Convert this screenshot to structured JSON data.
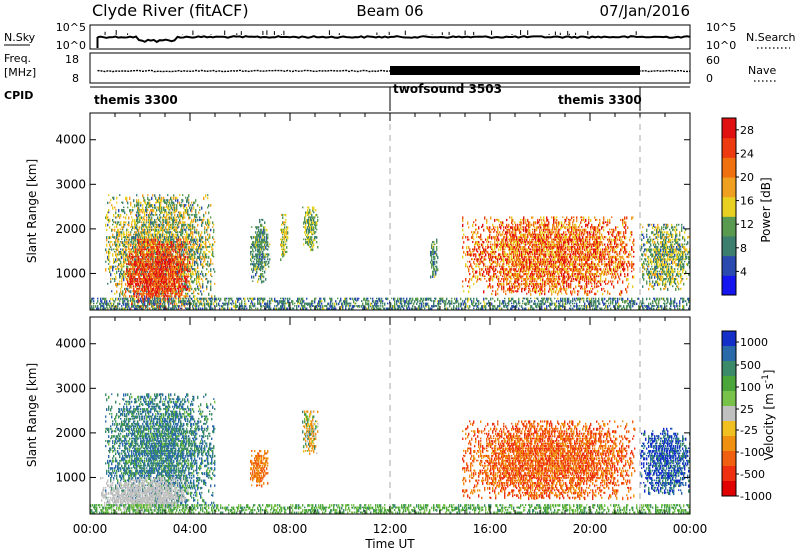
{
  "header": {
    "station": "Clyde River (fitACF)",
    "beam": "Beam 06",
    "date": "07/Jan/2016"
  },
  "panels": {
    "nsky": {
      "left_label": "N.Sky",
      "left_ticks": [
        "10^5",
        "10^0"
      ],
      "right_label": "N.Search",
      "right_ticks": [
        "10^5",
        "10^0"
      ]
    },
    "freq": {
      "left_label_1": "Freq.",
      "left_label_2": "[MHz]",
      "left_ticks": [
        "18",
        "8"
      ],
      "right_label": "Nave",
      "right_ticks": [
        "60",
        "0"
      ]
    },
    "cpid": {
      "label": "CPID",
      "segments": [
        {
          "name": "themis 3300",
          "start_h": 0,
          "end_h": 12
        },
        {
          "name": "twofsound 3503",
          "start_h": 12,
          "end_h": 22
        },
        {
          "name": "themis 3300",
          "start_h": 22,
          "end_h": 24
        }
      ]
    }
  },
  "colors": {
    "power_scale": [
      "#1515f0",
      "#2a4ab0",
      "#3c7f6e",
      "#5a9a50",
      "#e8d020",
      "#f0a020",
      "#f07010",
      "#ee3a10",
      "#e01010"
    ],
    "velocity_scale": [
      "#1530c8",
      "#2a6aa8",
      "#3b8a6a",
      "#4aa63a",
      "#78c24a",
      "#c0c0c0",
      "#f0c020",
      "#f09010",
      "#f06010",
      "#ee3010",
      "#e00000"
    ],
    "gray_fill": "#c0c0c0"
  },
  "chart_data": [
    {
      "type": "heatmap",
      "name": "power",
      "xlabel": "Time UT",
      "ylabel": "Slant Range [km]",
      "xlim_hours": [
        0,
        24
      ],
      "ylim_km": [
        180,
        4600
      ],
      "x_ticks": [
        "00:00",
        "04:00",
        "08:00",
        "12:00",
        "16:00",
        "20:00",
        "00:00"
      ],
      "y_ticks": [
        1000,
        2000,
        3000,
        4000
      ],
      "colorbar": {
        "label": "Power [dB]",
        "ticks": [
          4,
          8,
          12,
          16,
          20,
          24,
          28
        ],
        "range": [
          0,
          30
        ]
      },
      "mode_change_lines_h": [
        12,
        22
      ],
      "regions": [
        {
          "t": [
            0.6,
            5.0
          ],
          "r": [
            200,
            2800
          ],
          "value_range": [
            6,
            20
          ]
        },
        {
          "t": [
            1.4,
            4.0
          ],
          "r": [
            200,
            1800
          ],
          "value_range": [
            20,
            30
          ]
        },
        {
          "t": [
            0.0,
            24.0
          ],
          "r": [
            200,
            450
          ],
          "value_range": [
            4,
            14
          ]
        },
        {
          "t": [
            6.4,
            7.2
          ],
          "r": [
            800,
            2200
          ],
          "value_range": [
            6,
            14
          ]
        },
        {
          "t": [
            7.6,
            7.9
          ],
          "r": [
            1300,
            2400
          ],
          "value_range": [
            10,
            18
          ]
        },
        {
          "t": [
            8.5,
            9.1
          ],
          "r": [
            1500,
            2500
          ],
          "value_range": [
            8,
            16
          ]
        },
        {
          "t": [
            13.6,
            13.9
          ],
          "r": [
            900,
            1800
          ],
          "value_range": [
            6,
            14
          ]
        },
        {
          "t": [
            14.9,
            21.8
          ],
          "r": [
            500,
            2300
          ],
          "value_range": [
            14,
            30
          ]
        },
        {
          "t": [
            22.0,
            24.0
          ],
          "r": [
            600,
            2100
          ],
          "value_range": [
            6,
            18
          ]
        }
      ]
    },
    {
      "type": "heatmap",
      "name": "velocity",
      "xlabel": "Time UT",
      "ylabel": "Slant Range [km]",
      "xlim_hours": [
        0,
        24
      ],
      "ylim_km": [
        180,
        4600
      ],
      "x_ticks": [
        "00:00",
        "04:00",
        "08:00",
        "12:00",
        "16:00",
        "20:00",
        "00:00"
      ],
      "y_ticks": [
        1000,
        2000,
        3000,
        4000
      ],
      "colorbar": {
        "label": "Velocity [m s^-1]",
        "ticks": [
          1000,
          500,
          100,
          25,
          -25,
          -100,
          -500,
          -1000
        ]
      },
      "mode_change_lines_h": [
        12,
        22
      ],
      "regions": [
        {
          "t": [
            0.6,
            5.0
          ],
          "r": [
            300,
            2900
          ],
          "value_range": [
            25,
            500
          ]
        },
        {
          "t": [
            0.4,
            4.0
          ],
          "r": [
            200,
            1000
          ],
          "value_range": [
            -25,
            25
          ]
        },
        {
          "t": [
            0.0,
            24.0
          ],
          "r": [
            200,
            420
          ],
          "value_range": [
            25,
            120
          ]
        },
        {
          "t": [
            6.4,
            7.1
          ],
          "r": [
            800,
            1600
          ],
          "value_range": [
            -500,
            -100
          ]
        },
        {
          "t": [
            8.5,
            9.1
          ],
          "r": [
            1500,
            2500
          ],
          "value_range": [
            -300,
            200
          ]
        },
        {
          "t": [
            14.9,
            21.8
          ],
          "r": [
            500,
            2300
          ],
          "value_range": [
            -700,
            -100
          ]
        },
        {
          "t": [
            22.0,
            24.0
          ],
          "r": [
            600,
            2100
          ],
          "value_range": [
            100,
            800
          ]
        }
      ]
    }
  ]
}
